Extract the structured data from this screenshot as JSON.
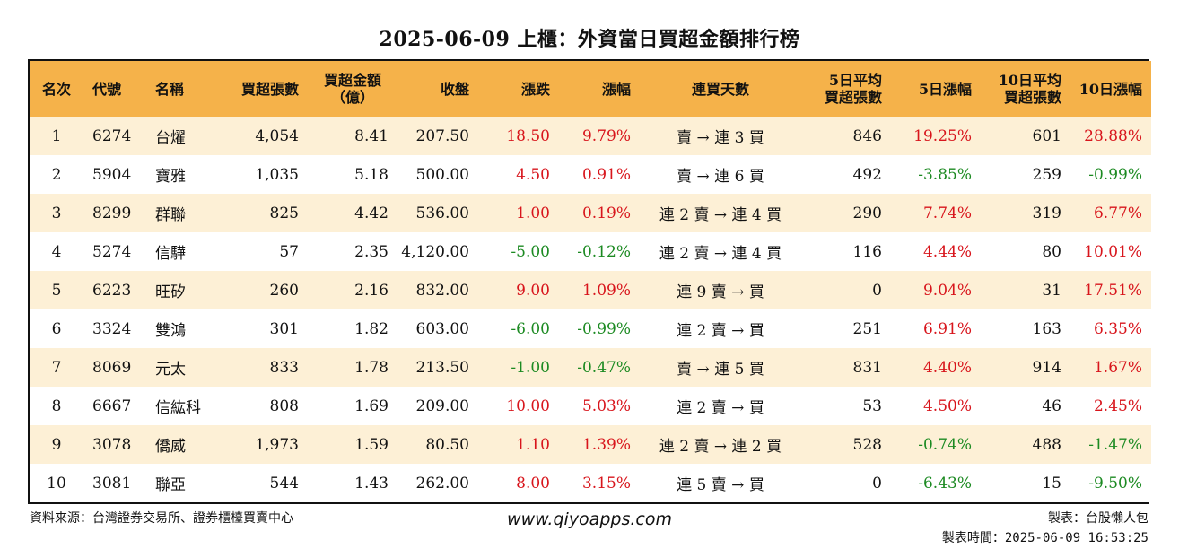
{
  "title": "2025-06-09 上櫃：外資當日買超金額排行榜",
  "headers": [
    "名次",
    "代號",
    "名稱",
    "買超張數",
    "買超金額\n（億）",
    "收盤",
    "漲跌",
    "漲幅",
    "連買天數",
    "5日平均\n買超張數",
    "5日漲幅",
    "10日平均\n買超張數",
    "10日漲幅"
  ],
  "rows": [
    [
      "1",
      "6274",
      "台燿",
      "4,054",
      "8.41",
      "207.50",
      "18.50",
      "9.79%",
      "賣 → 連 3 買",
      "846",
      "19.25%",
      "601",
      "28.88%"
    ],
    [
      "2",
      "5904",
      "寶雅",
      "1,035",
      "5.18",
      "500.00",
      "4.50",
      "0.91%",
      "賣 → 連 6 買",
      "492",
      "-3.85%",
      "259",
      "-0.99%"
    ],
    [
      "3",
      "8299",
      "群聯",
      "825",
      "4.42",
      "536.00",
      "1.00",
      "0.19%",
      "連 2 賣 → 連 4 買",
      "290",
      "7.74%",
      "319",
      "6.77%"
    ],
    [
      "4",
      "5274",
      "信驊",
      "57",
      "2.35",
      "4,120.00",
      "-5.00",
      "-0.12%",
      "連 2 賣 → 連 4 買",
      "116",
      "4.44%",
      "80",
      "10.01%"
    ],
    [
      "5",
      "6223",
      "旺矽",
      "260",
      "2.16",
      "832.00",
      "9.00",
      "1.09%",
      "連 9 賣 → 買",
      "0",
      "9.04%",
      "31",
      "17.51%"
    ],
    [
      "6",
      "3324",
      "雙鴻",
      "301",
      "1.82",
      "603.00",
      "-6.00",
      "-0.99%",
      "連 2 賣 → 買",
      "251",
      "6.91%",
      "163",
      "6.35%"
    ],
    [
      "7",
      "8069",
      "元太",
      "833",
      "1.78",
      "213.50",
      "-1.00",
      "-0.47%",
      "賣 → 連 5 買",
      "831",
      "4.40%",
      "914",
      "1.67%"
    ],
    [
      "8",
      "6667",
      "信紘科",
      "808",
      "1.69",
      "209.00",
      "10.00",
      "5.03%",
      "連 2 賣 → 買",
      "53",
      "4.50%",
      "46",
      "2.45%"
    ],
    [
      "9",
      "3078",
      "僑威",
      "1,973",
      "1.59",
      "80.50",
      "1.10",
      "1.39%",
      "連 2 賣 → 連 2 買",
      "528",
      "-0.74%",
      "488",
      "-1.47%"
    ],
    [
      "10",
      "3081",
      "聯亞",
      "544",
      "1.43",
      "262.00",
      "8.00",
      "3.15%",
      "連 5 賣 → 買",
      "0",
      "-6.43%",
      "15",
      "-9.50%"
    ]
  ],
  "footer": {
    "source": "資料來源：台灣證券交易所、證券櫃檯買賣中心",
    "site": "www.qiyoapps.com",
    "maker": "製表：台股懶人包",
    "time": "製表時間：2025-06-09 16:53:25"
  },
  "colors": {
    "header_bg": "#f5b24a",
    "row_alt_bg": "#fdf0d6",
    "up": "#d8151c",
    "down": "#1c8a22"
  }
}
